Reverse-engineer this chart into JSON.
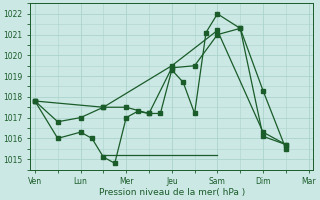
{
  "background_color": "#cce8e4",
  "grid_color": "#aad4cc",
  "line_color": "#1a5c2a",
  "title": "Pression niveau de la mer( hPa )",
  "ylim": [
    1014.5,
    1022.5
  ],
  "yticks": [
    1015,
    1016,
    1017,
    1018,
    1019,
    1020,
    1021,
    1022
  ],
  "xlim": [
    -0.1,
    6.1
  ],
  "xtick_positions": [
    0,
    1,
    2,
    3,
    4,
    5,
    6
  ],
  "xtick_labels": [
    "Ven",
    "Lun",
    "Mer",
    "Jeu",
    "Sam",
    "Dim",
    "Mar"
  ],
  "line1_x": [
    0,
    0.5,
    1.0,
    1.25,
    1.5,
    1.75,
    2.0,
    2.25,
    2.5,
    2.75,
    3.0,
    3.25,
    3.5,
    3.75,
    4.0,
    4.5,
    5.0,
    5.5
  ],
  "line1_y": [
    1017.8,
    1016.0,
    1016.3,
    1016.0,
    1015.1,
    1014.8,
    1017.0,
    1017.3,
    1017.2,
    1017.2,
    1019.3,
    1018.7,
    1017.2,
    1021.1,
    1022.0,
    1021.3,
    1016.1,
    1015.7
  ],
  "line2_x": [
    0,
    0.5,
    1.0,
    1.5,
    2.0,
    2.5,
    3.0,
    3.5,
    4.0,
    4.5,
    5.0,
    5.5
  ],
  "line2_y": [
    1017.8,
    1016.8,
    1017.0,
    1017.5,
    1017.5,
    1017.2,
    1019.4,
    1019.5,
    1021.0,
    1021.3,
    1018.3,
    1015.5
  ],
  "line3_x": [
    0,
    1.5,
    3.0,
    4.0,
    5.0,
    5.5
  ],
  "line3_y": [
    1017.8,
    1017.5,
    1019.5,
    1021.2,
    1016.3,
    1015.7
  ],
  "line4_x": [
    1.5,
    4.0
  ],
  "line4_y": [
    1015.2,
    1015.2
  ]
}
